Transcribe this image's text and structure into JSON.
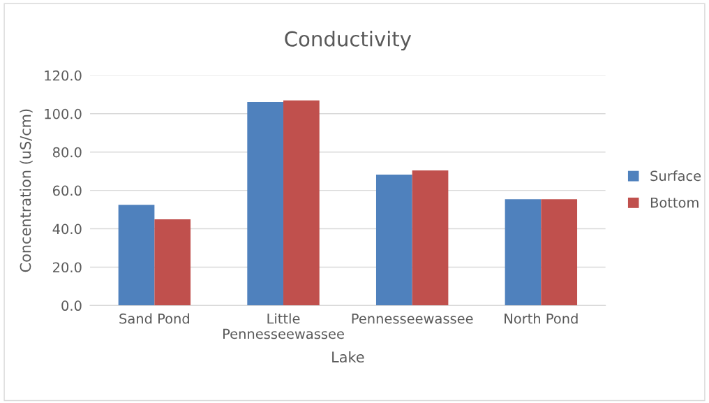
{
  "chart_data": {
    "type": "bar",
    "title": "Conductivity",
    "xlabel": "Lake",
    "ylabel": "Concentration (uS/cm)",
    "categories": [
      "Sand Pond",
      "Little Pennesseewassee",
      "Pennesseewassee",
      "North Pond"
    ],
    "series": [
      {
        "name": "Surface",
        "color": "#4f81bd",
        "values": [
          52.5,
          106.1,
          68.2,
          55.4
        ]
      },
      {
        "name": "Bottom",
        "color": "#c0504d",
        "values": [
          44.9,
          106.9,
          70.4,
          55.4
        ]
      }
    ],
    "ylim": [
      0,
      120
    ],
    "yticks": [
      {
        "value": 0,
        "label": "0.0"
      },
      {
        "value": 20,
        "label": "20.0"
      },
      {
        "value": 40,
        "label": "40.0"
      },
      {
        "value": 60,
        "label": "60.0"
      },
      {
        "value": 80,
        "label": "80.0"
      },
      {
        "value": 100,
        "label": "100.0"
      },
      {
        "value": 120,
        "label": "120.0"
      }
    ],
    "grid": "y",
    "legend": "right"
  }
}
